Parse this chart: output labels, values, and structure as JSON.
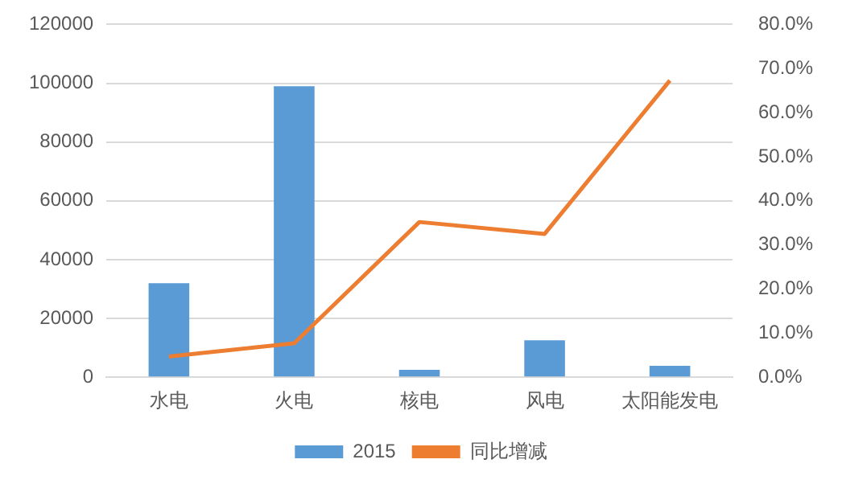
{
  "chart_data": {
    "type": "bar",
    "categories": [
      "水电",
      "火电",
      "核电",
      "风电",
      "太阳能发电"
    ],
    "series": [
      {
        "name": "2015",
        "color": "#5b9bd5",
        "values": [
          32000,
          99000,
          2500,
          12600,
          3900
        ]
      },
      {
        "name": "同比增减",
        "type": "line",
        "axis": "y2",
        "color": "#ed7d31",
        "marker": "none",
        "values": [
          4.7,
          7.7,
          35.2,
          32.5,
          67.3
        ]
      }
    ],
    "ylim": [
      0,
      120000
    ],
    "yticks": [
      0,
      20000,
      40000,
      60000,
      80000,
      100000,
      120000
    ],
    "y2lim": [
      0,
      80
    ],
    "y2ticks": [
      {
        "value": 0,
        "label": "0.0%"
      },
      {
        "value": 10,
        "label": "10.0%"
      },
      {
        "value": 20,
        "label": "20.0%"
      },
      {
        "value": 30,
        "label": "30.0%"
      },
      {
        "value": 40,
        "label": "40.0%"
      },
      {
        "value": 50,
        "label": "50.0%"
      },
      {
        "value": 60,
        "label": "60.0%"
      },
      {
        "value": 70,
        "label": "70.0%"
      },
      {
        "value": 80,
        "label": "80.0%"
      }
    ],
    "grid": "y",
    "legend": "bottom"
  }
}
